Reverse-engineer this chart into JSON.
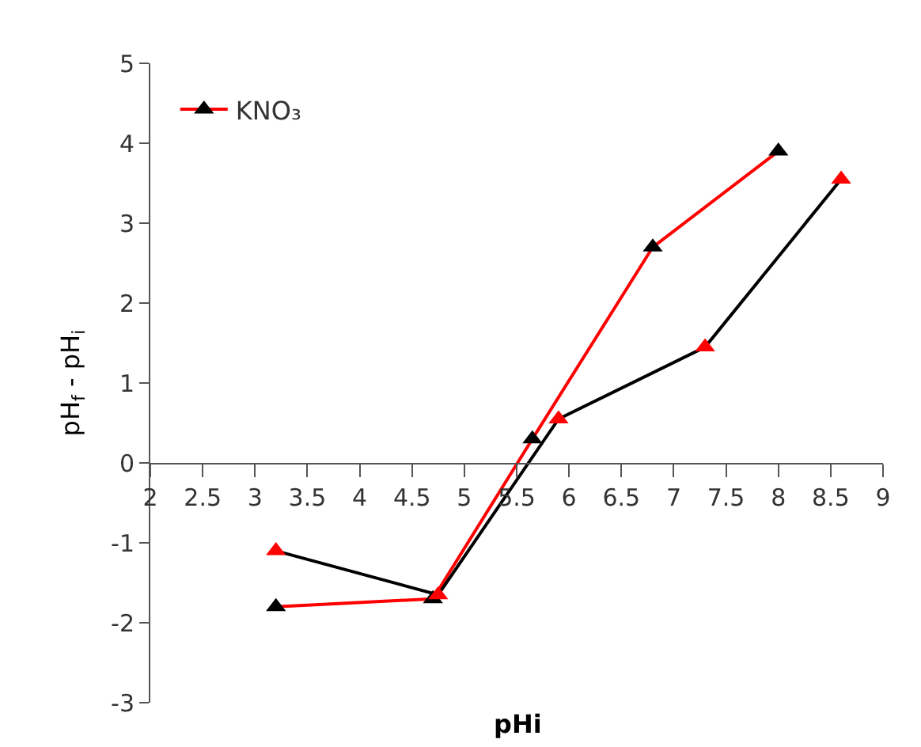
{
  "chart_data": {
    "type": "line",
    "xlabel": "pHi",
    "ylabel": "pH$_{f}$ - pH$_{i}$",
    "series": [
      {
        "name": "KNO₃",
        "color": "#ff0000",
        "colors": [
          "#000000",
          "#000000",
          "#000000",
          "#000000",
          "#000000"
        ],
        "x": [
          3.2,
          4.7,
          5.65,
          6.8,
          8.0
        ],
        "values": [
          -1.8,
          -1.7,
          0.3,
          2.7,
          3.9
        ]
      },
      {
        "color": "#000000",
        "colors": [
          "#ff0000",
          "#ff0000",
          "#ff0000",
          "#ff0000",
          "#ff0000"
        ],
        "x": [
          3.2,
          4.75,
          5.9,
          7.3,
          8.6
        ],
        "values": [
          -1.1,
          -1.65,
          0.55,
          1.45,
          3.55
        ]
      }
    ],
    "marker": "triangle",
    "line_style": "solid",
    "legend": "top left",
    "xlim": [
      2,
      9
    ],
    "xticks": [
      2,
      2.5,
      3,
      3.5,
      4,
      4.5,
      5,
      5.5,
      6,
      6.5,
      7,
      7.5,
      8,
      8.5,
      9
    ],
    "ylim": [
      -3,
      5
    ],
    "yticks": [
      -3,
      -2,
      -1,
      0,
      1,
      2,
      3,
      4,
      5
    ]
  }
}
